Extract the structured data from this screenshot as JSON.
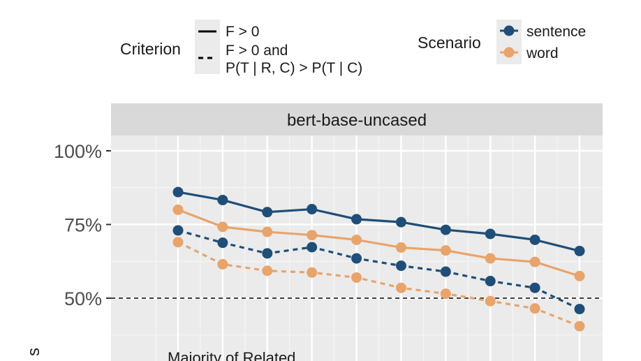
{
  "legend": {
    "criterion_title": "Criterion",
    "criterion_solid": "F > 0",
    "criterion_dashed_line1": "F > 0 and",
    "criterion_dashed_line2": "P(T | R, C) > P(T | C)",
    "scenario_title": "Scenario"
  },
  "facet": {
    "strip_label": "bert-base-uncased"
  },
  "annotation": "Majority of Related",
  "ylabel_partial": "s",
  "chart_data": {
    "type": "line",
    "facet": "bert-base-uncased",
    "y_tick_labels": [
      "50%",
      "75%",
      "100%"
    ],
    "y_ticks": [
      50,
      75,
      100
    ],
    "reference_line": 50,
    "x": [
      1,
      2,
      3,
      4,
      5,
      6,
      7,
      8,
      9,
      10
    ],
    "series": [
      {
        "name": "sentence",
        "criterion": "F > 0",
        "linestyle": "solid",
        "color": "#1f4e79",
        "values": [
          86,
          83.3,
          79.2,
          80.2,
          76.8,
          75.8,
          73.2,
          71.8,
          69.8,
          66
        ]
      },
      {
        "name": "word",
        "criterion": "F > 0",
        "linestyle": "solid",
        "color": "#e8a46b",
        "values": [
          80,
          74.2,
          72.5,
          71.4,
          69.8,
          67.2,
          66.2,
          63.5,
          62.3,
          57.5
        ]
      },
      {
        "name": "sentence",
        "criterion": "F > 0 and P(T | R, C) > P(T | C)",
        "linestyle": "dashed",
        "color": "#1f4e79",
        "values": [
          73,
          68.8,
          65.2,
          67.3,
          63.5,
          61,
          59,
          55.8,
          53.5,
          46.3
        ]
      },
      {
        "name": "word",
        "criterion": "F > 0 and P(T | R, C) > P(T | C)",
        "linestyle": "dashed",
        "color": "#e8a46b",
        "values": [
          69,
          61.5,
          59.3,
          58.7,
          57,
          53.5,
          51.5,
          49,
          46.5,
          40.5
        ]
      }
    ]
  }
}
